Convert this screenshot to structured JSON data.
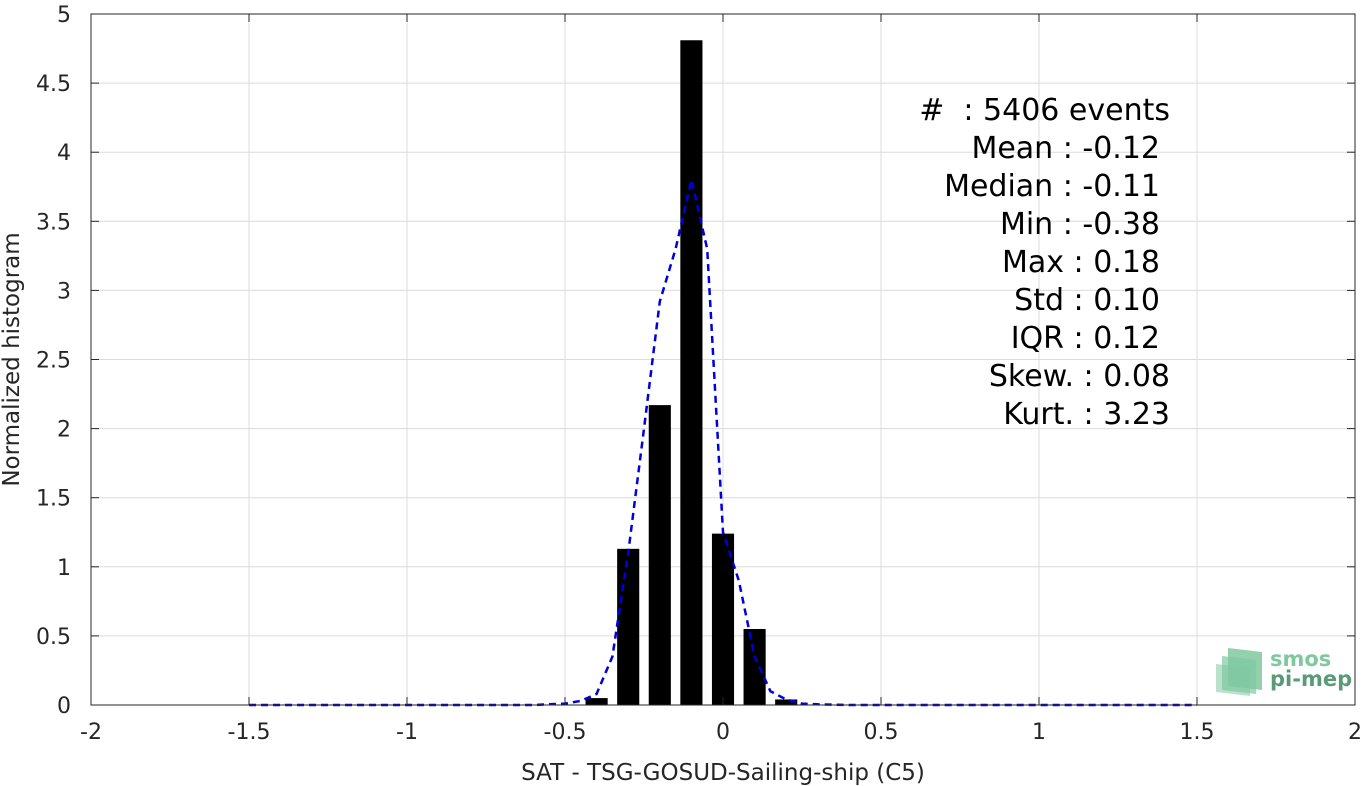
{
  "chart_data": {
    "type": "bar",
    "xlabel": "SAT - TSG-GOSUD-Sailing-ship (C5)",
    "ylabel": "Normalized histogram",
    "xlim": [
      -2,
      2
    ],
    "ylim": [
      0,
      5
    ],
    "xticks": [
      -2,
      -1.5,
      -1,
      -0.5,
      0,
      0.5,
      1,
      1.5,
      2
    ],
    "xtick_labels": [
      "-2",
      "-1.5",
      "-1",
      "-0.5",
      "0",
      "0.5",
      "1",
      "1.5",
      "2"
    ],
    "yticks": [
      0,
      0.5,
      1,
      1.5,
      2,
      2.5,
      3,
      3.5,
      4,
      4.5,
      5
    ],
    "ytick_labels": [
      "0",
      "0.5",
      "1",
      "1.5",
      "2",
      "2.5",
      "3",
      "3.5",
      "4",
      "4.5",
      "5"
    ],
    "grid": true,
    "bar_width": 0.07,
    "bars": {
      "color": "#000000",
      "x": [
        -0.4,
        -0.3,
        -0.2,
        -0.1,
        0.0,
        0.1,
        0.2
      ],
      "values": [
        0.05,
        1.13,
        2.17,
        4.81,
        1.24,
        0.55,
        0.04
      ]
    },
    "fit_curve": {
      "style": "dashed",
      "color": "#0000dd",
      "x": [
        -1.5,
        -1.4,
        -1.3,
        -1.2,
        -1.1,
        -1.0,
        -0.9,
        -0.8,
        -0.7,
        -0.6,
        -0.5,
        -0.45,
        -0.4,
        -0.35,
        -0.3,
        -0.25,
        -0.2,
        -0.15,
        -0.1,
        -0.05,
        0.0,
        0.05,
        0.1,
        0.15,
        0.2,
        0.25,
        0.3,
        0.4,
        0.5,
        0.6,
        0.7,
        0.8,
        0.9,
        1.0,
        1.1,
        1.2,
        1.3,
        1.4,
        1.5
      ],
      "y": [
        0,
        0,
        0,
        0,
        0,
        0,
        0,
        0,
        0,
        0,
        0.01,
        0.03,
        0.08,
        0.35,
        1.1,
        2.0,
        2.92,
        3.3,
        3.8,
        3.3,
        1.25,
        0.9,
        0.35,
        0.1,
        0.04,
        0.01,
        0.005,
        0,
        0,
        0,
        0,
        0,
        0,
        0,
        0,
        0,
        0,
        0,
        0
      ]
    },
    "stats": [
      "#  : 5406 events",
      "Mean : -0.12",
      "Median : -0.11",
      "Min : -0.38",
      "Max : 0.18",
      "Std : 0.10",
      "IQR : 0.12",
      "Skew. : 0.08",
      "Kurt. : 3.23"
    ]
  },
  "logo": {
    "line1": "smos",
    "line2": "pi-mep",
    "color_top": "#7fc8a0",
    "color_bottom": "#5a9a78"
  }
}
